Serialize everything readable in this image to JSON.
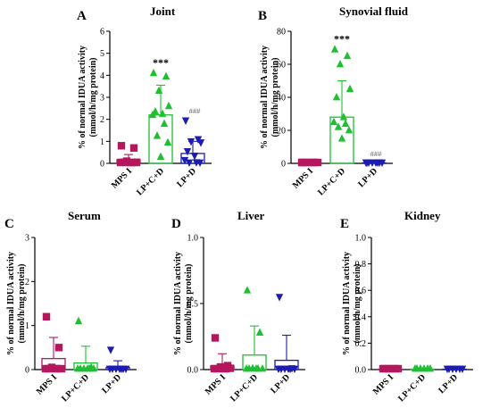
{
  "colors": {
    "MPS I": "#b5175f",
    "LP+C+D": "#1fbf32",
    "LP+D": "#1c1cb0"
  },
  "chart_data": [
    {
      "type": "bar",
      "letter": "A",
      "title": "Joint",
      "ylabel": [
        "% of normal IDUA activity",
        "(mmol/h/mg protein)"
      ],
      "ylim": [
        0,
        6
      ],
      "yticks": [
        0,
        1,
        2,
        3,
        4,
        5,
        6
      ],
      "categories": [
        "MPS I",
        "LP+C+D",
        "LP+D"
      ],
      "markers": [
        "square",
        "triangle",
        "triangle-down"
      ],
      "means": [
        0.15,
        2.2,
        0.45
      ],
      "sd": [
        0.25,
        1.35,
        0.55
      ],
      "points": [
        [
          0.8,
          0.7,
          0.1,
          0.05,
          0.05,
          0.02,
          0.01,
          0,
          0,
          0
        ],
        [
          4.1,
          3.95,
          3.3,
          2.6,
          2.35,
          2.25,
          2.2,
          1.8,
          1.25,
          0.95,
          0.3
        ],
        [
          1.95,
          1.1,
          1.0,
          0.95,
          0.55,
          0.35,
          0.15,
          0.05,
          0,
          0
        ]
      ],
      "annotations": [
        "",
        "***",
        "###"
      ]
    },
    {
      "type": "bar",
      "letter": "B",
      "title": "Synovial fluid",
      "ylabel": [
        "% of normal IDUA activity",
        "(mmol/h/mg protein)"
      ],
      "ylim": [
        0,
        80
      ],
      "yticks": [
        0,
        20,
        40,
        60,
        80
      ],
      "categories": [
        "MPS I",
        "LP+C+D",
        "LP+D"
      ],
      "markers": [
        "square",
        "triangle",
        "triangle-down"
      ],
      "means": [
        0,
        28,
        0.3
      ],
      "sd": [
        0,
        22,
        0.3
      ],
      "points": [
        [
          0,
          0,
          0,
          0,
          0,
          0,
          0,
          0
        ],
        [
          69,
          65,
          60,
          45,
          40,
          28,
          25,
          24,
          22,
          20,
          15
        ],
        [
          0.5,
          0.3,
          0.2,
          0,
          0,
          0,
          0,
          0
        ]
      ],
      "annotations": [
        "",
        "***",
        "###"
      ]
    },
    {
      "type": "bar",
      "letter": "C",
      "title": "Serum",
      "ylabel": [
        "% of normal IDUA activity",
        "(mmol/h/mg protein)"
      ],
      "ylim": [
        0,
        3
      ],
      "yticks": [
        0,
        1,
        2,
        3
      ],
      "categories": [
        "MPS I",
        "LP+C+D",
        "LP+D"
      ],
      "markers": [
        "square",
        "triangle",
        "triangle-down"
      ],
      "means": [
        0.25,
        0.15,
        0.05
      ],
      "sd": [
        0.48,
        0.38,
        0.15
      ],
      "points": [
        [
          1.2,
          0.5,
          0.05,
          0,
          0,
          0,
          0,
          0
        ],
        [
          1.1,
          0.05,
          0,
          0,
          0,
          0,
          0,
          0
        ],
        [
          0.45,
          0,
          0,
          0,
          0,
          0,
          0,
          0
        ]
      ],
      "annotations": [
        "",
        "",
        ""
      ]
    },
    {
      "type": "bar",
      "letter": "D",
      "title": "Liver",
      "ylabel": [
        "% of normal IDUA activity",
        "(mmol/h/mg protein)"
      ],
      "ylim": [
        0,
        1
      ],
      "yticks": [
        0,
        0.5,
        1
      ],
      "ytick_labels": [
        "0.0",
        "0.5",
        "1.0"
      ],
      "categories": [
        "MPS I",
        "LP+C+D",
        "LP+D"
      ],
      "markers": [
        "square",
        "triangle",
        "triangle-down"
      ],
      "means": [
        0.03,
        0.11,
        0.07
      ],
      "sd": [
        0.09,
        0.22,
        0.19
      ],
      "points": [
        [
          0.24,
          0.03,
          0.02,
          0.01,
          0,
          0,
          0,
          0
        ],
        [
          0.6,
          0.28,
          0.01,
          0,
          0,
          0,
          0,
          0
        ],
        [
          0.55,
          0.01,
          0,
          0,
          0,
          0,
          0,
          0
        ]
      ],
      "annotations": [
        "",
        "",
        ""
      ]
    },
    {
      "type": "bar",
      "letter": "E",
      "title": "Kidney",
      "ylabel": [
        "% of normal IDUA activity",
        "(mmol/h/mg protein)"
      ],
      "ylim": [
        0,
        1
      ],
      "yticks": [
        0,
        0.2,
        0.4,
        0.6,
        0.8,
        1
      ],
      "ytick_labels": [
        "0.0",
        "0.2",
        "0.4",
        "0.6",
        "0.8",
        "1.0"
      ],
      "categories": [
        "MPS I",
        "LP+C+D",
        "LP+D"
      ],
      "markers": [
        "square",
        "triangle",
        "triangle-down"
      ],
      "means": [
        0,
        0,
        0
      ],
      "sd": [
        0,
        0,
        0
      ],
      "points": [
        [
          0,
          0,
          0,
          0,
          0,
          0
        ],
        [
          0,
          0,
          0,
          0,
          0,
          0
        ],
        [
          0,
          0,
          0,
          0,
          0,
          0
        ]
      ],
      "annotations": [
        "",
        "",
        ""
      ]
    }
  ]
}
